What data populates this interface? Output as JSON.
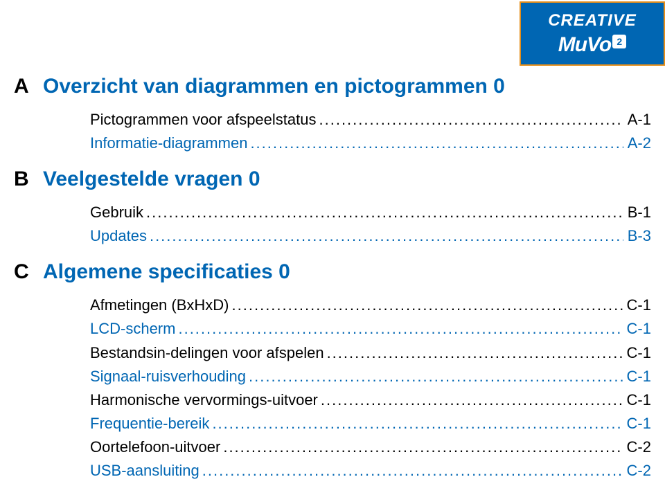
{
  "logo": {
    "brand": "CREATIVE",
    "product": "MuVo",
    "badge": "2",
    "bg_color": "#0066b3",
    "border_color": "#e58e1a",
    "text_color": "#ffffff"
  },
  "colors": {
    "heading_blue": "#0066b3",
    "text_black": "#000000",
    "background": "#ffffff"
  },
  "typography": {
    "section_fontsize": 30,
    "row_fontsize": 22
  },
  "sections": [
    {
      "letter": "A",
      "title": "Overzicht van diagrammen en pictogrammen 0",
      "items": [
        {
          "label": "Pictogrammen voor afspeelstatus",
          "page": "A-1",
          "blue": false
        },
        {
          "label": "Informatie-diagrammen",
          "page": "A-2",
          "blue": true
        }
      ]
    },
    {
      "letter": "B",
      "title": "Veelgestelde vragen 0",
      "items": [
        {
          "label": "Gebruik",
          "page": "B-1",
          "blue": false
        },
        {
          "label": "Updates",
          "page": "B-3",
          "blue": true
        }
      ]
    },
    {
      "letter": "C",
      "title": "Algemene specificaties 0",
      "items": [
        {
          "label": "Afmetingen (BxHxD)",
          "page": "C-1",
          "blue": false
        },
        {
          "label": "LCD-scherm",
          "page": "C-1",
          "blue": true
        },
        {
          "label": "Bestandsin-delingen voor afspelen",
          "page": "C-1",
          "blue": false
        },
        {
          "label": "Signaal-ruisverhouding",
          "page": "C-1",
          "blue": true
        },
        {
          "label": "Harmonische vervormings-uitvoer",
          "page": "C-1",
          "blue": false
        },
        {
          "label": "Frequentie-bereik",
          "page": "C-1",
          "blue": true
        },
        {
          "label": "Oortelefoon-uitvoer",
          "page": "C-2",
          "blue": false
        },
        {
          "label": "USB-aansluiting",
          "page": "C-2",
          "blue": true
        }
      ]
    }
  ]
}
